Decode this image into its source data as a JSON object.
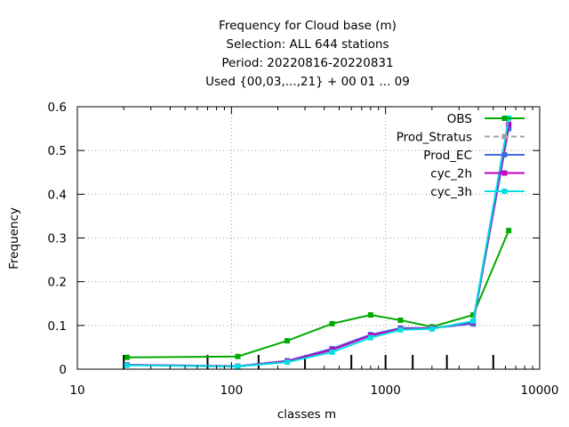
{
  "chart_data": {
    "type": "line",
    "title_lines": [
      "Frequency  for Cloud base (m)",
      "Selection: ALL    644 stations",
      "Period: 20220816-20220831",
      "Used {00,03,...,21} + 00 01 ... 09"
    ],
    "xlabel": "classes m",
    "ylabel": "Frequency",
    "xscale": "log",
    "xlim": [
      10,
      10000
    ],
    "ylim": [
      0,
      0.6
    ],
    "xticks": [
      10,
      100,
      1000,
      10000
    ],
    "xtick_labels": [
      "10",
      "100",
      "1000",
      "10000"
    ],
    "yticks": [
      0,
      0.1,
      0.2,
      0.3,
      0.4,
      0.5,
      0.6
    ],
    "ytick_labels": [
      "0",
      "0.1",
      "0.2",
      "0.3",
      "0.4",
      "0.5",
      "0.6"
    ],
    "grid": true,
    "legend_position": "top-right",
    "class_markers_x": [
      20,
      70,
      150,
      300,
      600,
      1000,
      1500,
      2500,
      5000
    ],
    "series": [
      {
        "name": "OBS",
        "color": "#00aa00",
        "style": "solid",
        "x": [
          21,
          110,
          230,
          450,
          800,
          1250,
          2000,
          3700,
          6300
        ],
        "y": [
          0.027,
          0.029,
          0.065,
          0.104,
          0.124,
          0.112,
          0.097,
          0.124,
          0.317
        ]
      },
      {
        "name": "Prod_Stratus",
        "color": "#a0a0a0",
        "style": "dashed",
        "x": [
          21,
          110,
          230,
          450,
          800,
          1250,
          2000,
          3700,
          6300
        ],
        "y": [
          0.01,
          0.007,
          0.019,
          0.046,
          0.078,
          0.093,
          0.094,
          0.103,
          0.555
        ]
      },
      {
        "name": "Prod_EC",
        "color": "#4169e1",
        "style": "solid",
        "x": [
          21,
          110,
          230,
          450,
          800,
          1250,
          2000,
          3700,
          6300
        ],
        "y": [
          0.01,
          0.007,
          0.019,
          0.047,
          0.079,
          0.094,
          0.094,
          0.104,
          0.55
        ]
      },
      {
        "name": "cyc_2h",
        "color": "#c000c0",
        "style": "solid",
        "x": [
          21,
          110,
          230,
          450,
          800,
          1250,
          2000,
          3700,
          6300
        ],
        "y": [
          0.01,
          0.006,
          0.018,
          0.044,
          0.077,
          0.092,
          0.093,
          0.108,
          0.56
        ]
      },
      {
        "name": "cyc_3h",
        "color": "#00e0e0",
        "style": "solid",
        "x": [
          21,
          110,
          230,
          450,
          800,
          1250,
          2000,
          3700,
          6300
        ],
        "y": [
          0.009,
          0.006,
          0.016,
          0.039,
          0.072,
          0.09,
          0.092,
          0.11,
          0.574
        ]
      }
    ]
  }
}
